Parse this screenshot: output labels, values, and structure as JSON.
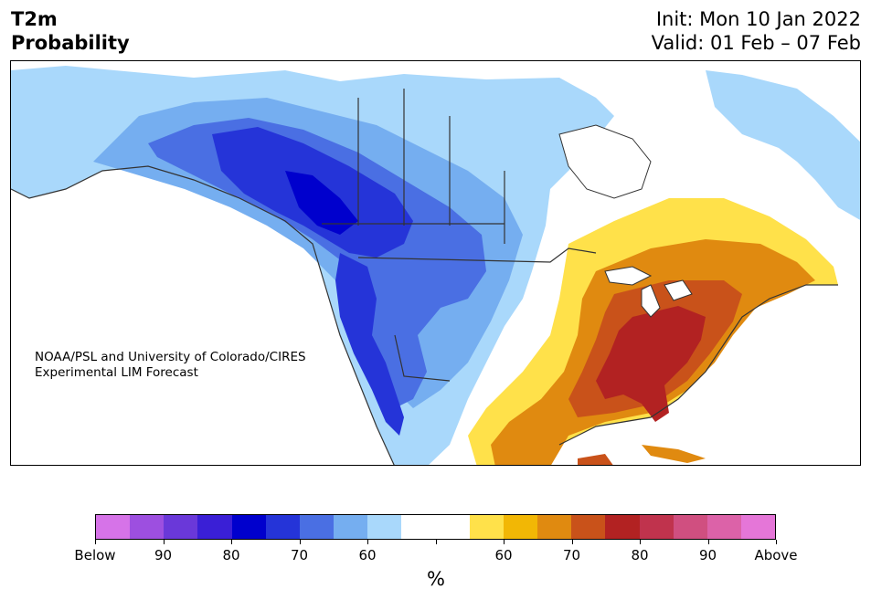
{
  "title": {
    "variable": "T2m",
    "product": "Probability",
    "init": "Init: Mon 10 Jan 2022",
    "valid": "Valid: 01 Feb – 07 Feb"
  },
  "credit": {
    "line1": "NOAA/PSL and University of Colorado/CIRES",
    "line2": "Experimental LIM Forecast"
  },
  "map": {
    "region": "North America",
    "categories": {
      "below_strong": "#0000cd",
      "below_moderate": "#4a6fe3",
      "below_weak": "#a9d8fb",
      "near_normal": "#ffffff",
      "above_weak": "#ffe14a",
      "above_moderate": "#e08a10",
      "above_strong": "#b22222"
    }
  },
  "colorbar": {
    "colors": [
      "#d673e8",
      "#9d4fe0",
      "#6a38d9",
      "#3a1fd6",
      "#0000cd",
      "#2534d8",
      "#4a6fe3",
      "#75aef0",
      "#a9d8fb",
      "#ffffff",
      "#ffffff",
      "#ffe14a",
      "#f2b705",
      "#e08a10",
      "#c9521a",
      "#b22222",
      "#c0334d",
      "#d04f80",
      "#dc62a8",
      "#e576d8"
    ],
    "tick_labels": [
      "Below",
      "90",
      "80",
      "70",
      "60",
      "",
      "60",
      "70",
      "80",
      "90",
      "Above"
    ],
    "unit": "%"
  }
}
